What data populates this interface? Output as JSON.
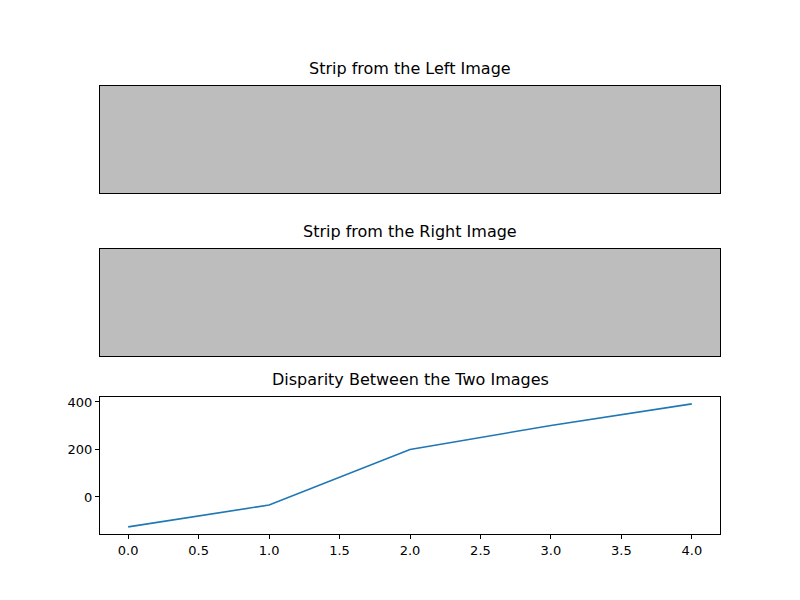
{
  "chart_data": [
    {
      "type": "image",
      "title": "Strip from the Left Image",
      "tick_labels": false
    },
    {
      "type": "image",
      "title": "Strip from the Right Image",
      "tick_labels": false
    },
    {
      "type": "line",
      "title": "Disparity Between the Two Images",
      "x": [
        0,
        1,
        2,
        3,
        4
      ],
      "values": [
        -126,
        -34,
        200,
        301,
        392
      ],
      "color": "#1f77b4",
      "xlim": [
        -0.2,
        4.2
      ],
      "xticks": [
        {
          "value": 0,
          "label": "0.0"
        },
        {
          "value": 0.5,
          "label": "0.5"
        },
        {
          "value": 1,
          "label": "1.0"
        },
        {
          "value": 1.5,
          "label": "1.5"
        },
        {
          "value": 2,
          "label": "2.0"
        },
        {
          "value": 2.5,
          "label": "2.5"
        },
        {
          "value": 3,
          "label": "3.0"
        },
        {
          "value": 3.5,
          "label": "3.5"
        },
        {
          "value": 4,
          "label": "4.0"
        }
      ],
      "ylim": [
        -156,
        421
      ],
      "yticks": [
        0,
        200,
        400
      ],
      "grid": false
    }
  ]
}
